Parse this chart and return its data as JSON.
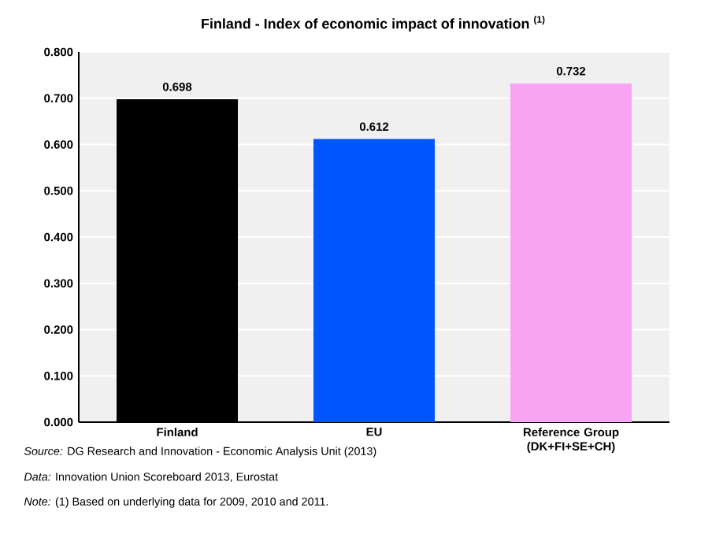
{
  "chart_data": {
    "type": "bar",
    "title": "Finland - Index of economic impact of innovation $^{(1)}$",
    "categories": [
      "Finland",
      "EU",
      "Reference Group (DK+FI+SE+CH)"
    ],
    "values": [
      0.698,
      0.612,
      0.732
    ],
    "colors": [
      "#000000",
      "#0055ff",
      "#f9a3f3"
    ],
    "ylim": [
      0,
      0.8
    ],
    "yticks": [
      {
        "value": 0,
        "label": "0.000"
      },
      {
        "value": 0.1,
        "label": "0.100"
      },
      {
        "value": 0.2,
        "label": "0.200"
      },
      {
        "value": 0.3,
        "label": "0.300"
      },
      {
        "value": 0.4,
        "label": "0.400"
      },
      {
        "value": 0.5,
        "label": "0.500"
      },
      {
        "value": 0.6,
        "label": "0.600"
      },
      {
        "value": 0.7,
        "label": "0.700"
      },
      {
        "value": 0.8,
        "label": "0.800"
      }
    ],
    "grid": "y",
    "data_labels": true,
    "annotations": [
      "*Source:* DG Research and Innovation - Economic Analysis Unit (2013)",
      "*Data:* Innovation Union Scoreboard 2013, Eurostat",
      "*Note:* (1) Based on underlying data for 2009, 2010 and 2011."
    ]
  }
}
